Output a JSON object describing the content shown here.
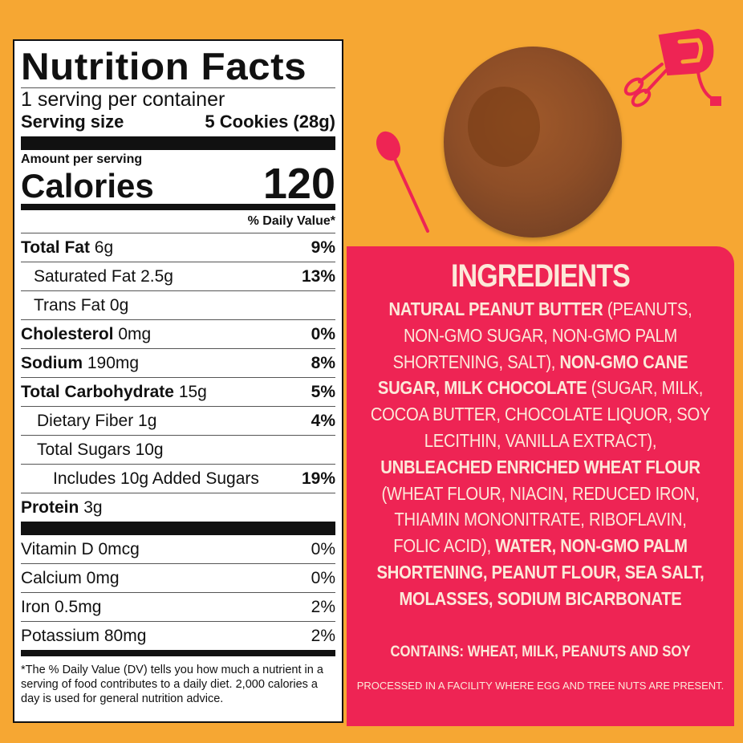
{
  "nutrition": {
    "title": "Nutrition Facts",
    "servings_per_container": "1 serving per container",
    "serving_size_label": "Serving size",
    "serving_size_value": "5 Cookies (28g)",
    "amount_per_serving": "Amount per serving",
    "calories_label": "Calories",
    "calories_value": "120",
    "daily_value_header": "% Daily Value*",
    "nutrients": [
      {
        "name": "Total Fat",
        "amount": "6g",
        "dv": "9%"
      },
      {
        "name": "Saturated Fat",
        "amount": "2.5g",
        "dv": "13%"
      },
      {
        "name": "Trans Fat",
        "amount": "0g",
        "dv": ""
      },
      {
        "name": "Cholesterol",
        "amount": "0mg",
        "dv": "0%"
      },
      {
        "name": "Sodium",
        "amount": "190mg",
        "dv": "8%"
      },
      {
        "name": "Total Carbohydrate",
        "amount": "15g",
        "dv": "5%"
      },
      {
        "name": "Dietary Fiber",
        "amount": "1g",
        "dv": "4%"
      },
      {
        "name": "Total Sugars",
        "amount": "10g",
        "dv": ""
      },
      {
        "name": "Includes 10g Added Sugars",
        "amount": "",
        "dv": "19%"
      },
      {
        "name": "Protein",
        "amount": "3g",
        "dv": ""
      }
    ],
    "vitamins": [
      {
        "name": "Vitamin D 0mcg",
        "dv": "0%"
      },
      {
        "name": "Calcium 0mg",
        "dv": "0%"
      },
      {
        "name": "Iron 0.5mg",
        "dv": "2%"
      },
      {
        "name": "Potassium 80mg",
        "dv": "2%"
      }
    ],
    "footnote": "*The % Daily Value (DV) tells you how much a nutrient in a serving of food contributes to a daily diet. 2,000 calories a day is used for general nutrition advice."
  },
  "ingredients": {
    "title": "INGREDIENTS",
    "lines": [
      [
        {
          "t": "NATURAL PEANUT BUTTER",
          "b": true
        },
        {
          "t": " (PEANUTS,",
          "b": false
        }
      ],
      [
        {
          "t": "NON-GMO SUGAR, NON-GMO PALM",
          "b": false
        }
      ],
      [
        {
          "t": "SHORTENING, SALT), ",
          "b": false
        },
        {
          "t": "NON-GMO CANE",
          "b": true
        }
      ],
      [
        {
          "t": "SUGAR, MILK CHOCOLATE",
          "b": true
        },
        {
          "t": " (SUGAR, MILK,",
          "b": false
        }
      ],
      [
        {
          "t": "COCOA BUTTER, CHOCOLATE LIQUOR, SOY",
          "b": false
        }
      ],
      [
        {
          "t": "LECITHIN, VANILLA EXTRACT),",
          "b": false
        }
      ],
      [
        {
          "t": "UNBLEACHED ENRICHED WHEAT FLOUR",
          "b": true
        }
      ],
      [
        {
          "t": "(WHEAT FLOUR, NIACIN, REDUCED IRON,",
          "b": false
        }
      ],
      [
        {
          "t": "THIAMIN MONONITRATE, RIBOFLAVIN,",
          "b": false
        }
      ],
      [
        {
          "t": "FOLIC ACID), ",
          "b": false
        },
        {
          "t": "WATER, NON-GMO PALM",
          "b": true
        }
      ],
      [
        {
          "t": "SHORTENING, PEANUT FLOUR, SEA SALT,",
          "b": true
        }
      ],
      [
        {
          "t": "MOLASSES, SODIUM BICARBONATE",
          "b": true
        }
      ]
    ],
    "contains": "CONTAINS: WHEAT, MILK, PEANUTS AND SOY",
    "processed": "PROCESSED IN A FACILITY WHERE EGG AND TREE NUTS ARE PRESENT."
  },
  "colors": {
    "background": "#F6A733",
    "panel": "#EE2454",
    "panel_text": "#FCE9D9",
    "label_text": "#111111"
  },
  "icons": [
    "spoon-icon",
    "hand-mixer-icon"
  ]
}
